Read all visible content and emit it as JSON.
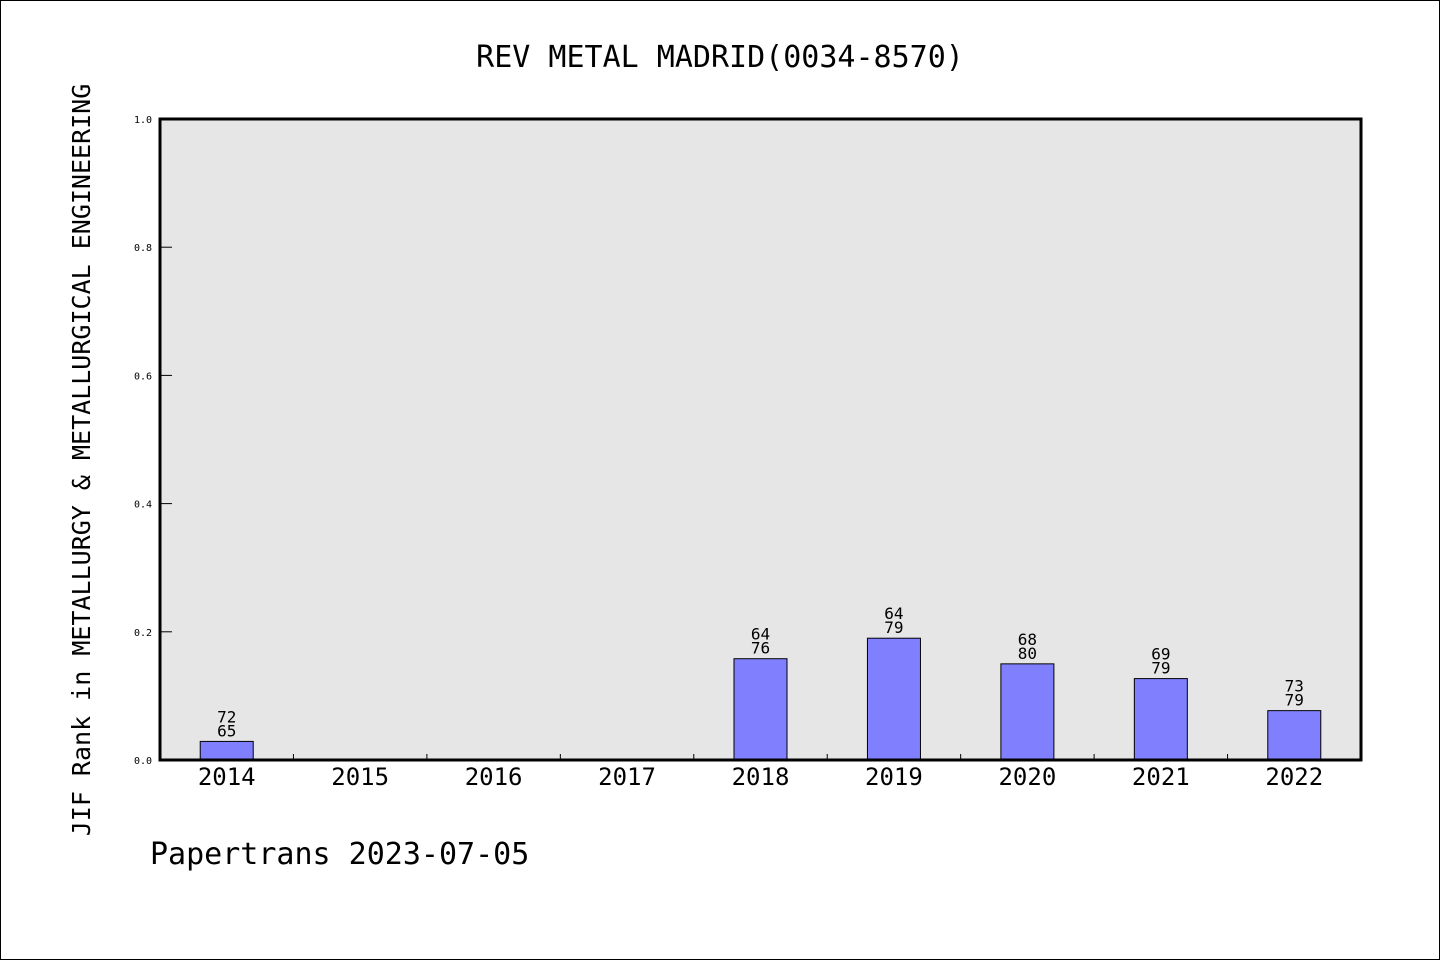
{
  "chart_data": {
    "type": "bar",
    "title": "REV METAL MADRID(0034-8570)",
    "ylabel": "JIF Rank in METALLURGY & METALLURGICAL ENGINEERING",
    "xlabel": "",
    "categories": [
      "2014",
      "2015",
      "2016",
      "2017",
      "2018",
      "2019",
      "2020",
      "2021",
      "2022"
    ],
    "values": [
      0.029,
      null,
      null,
      null,
      0.158,
      0.19,
      0.15,
      0.127,
      0.077
    ],
    "labels": [
      {
        "rank": "72",
        "total": "65"
      },
      null,
      null,
      null,
      {
        "rank": "64",
        "total": "76"
      },
      {
        "rank": "64",
        "total": "79"
      },
      {
        "rank": "68",
        "total": "80"
      },
      {
        "rank": "69",
        "total": "79"
      },
      {
        "rank": "73",
        "total": "79"
      }
    ],
    "yticks": [
      "0.0",
      "0.2",
      "0.4",
      "0.6",
      "0.8",
      "1.0"
    ],
    "ylim": [
      0,
      1
    ],
    "grid": false,
    "colors": {
      "bar": "#8080ff",
      "plot_bg": "#e6e6e6",
      "bar_edge": "#000000"
    }
  },
  "footer": "Papertrans 2023-07-05"
}
